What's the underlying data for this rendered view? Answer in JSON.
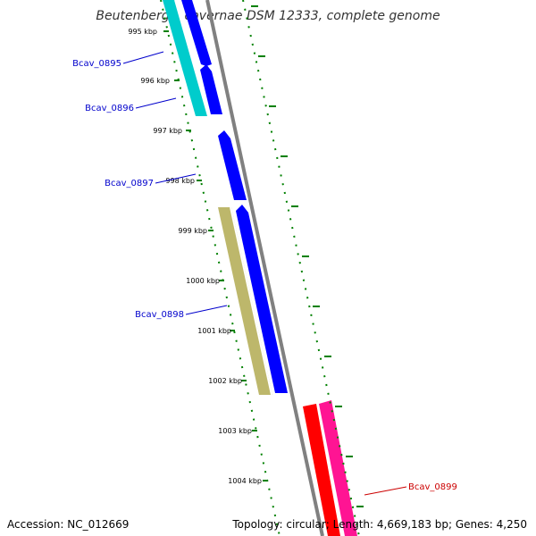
{
  "title": "Beutenbergia cavernae DSM 12333, complete genome",
  "footer": {
    "accession": "Accession: NC_012669",
    "topology": "Topology: circular; Length: 4,669,183 bp; Genes: 4,250"
  },
  "colors": {
    "background": "#ffffff",
    "backbone": "#808080",
    "tick": "#008000",
    "cds_forward": "#0000ff",
    "cds_reverse_cyan": "#00cccc",
    "cds_olive": "#bdb76b",
    "cds_red": "#ff0000",
    "cds_pink": "#ff1493"
  },
  "ticks": [
    "995 kbp",
    "996 kbp",
    "997 kbp",
    "998 kbp",
    "999 kbp",
    "1000 kbp",
    "1001 kbp",
    "1002 kbp",
    "1003 kbp",
    "1004 kbp"
  ],
  "genes": [
    {
      "name": "Bcav_0895",
      "color": "#0000cc"
    },
    {
      "name": "Bcav_0896",
      "color": "#0000cc"
    },
    {
      "name": "Bcav_0897",
      "color": "#0000cc"
    },
    {
      "name": "Bcav_0898",
      "color": "#0000cc"
    },
    {
      "name": "Bcav_0899",
      "color": "#cc0000"
    }
  ]
}
